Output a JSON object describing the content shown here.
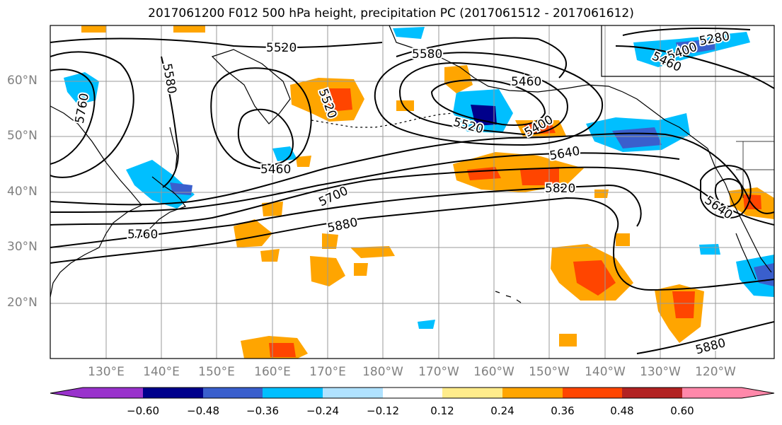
{
  "title": "2017061200 F012 500 hPa height, precipitation PC (2017061512 - 2017061612)",
  "lat_labels": [
    "60°N",
    "50°N",
    "40°N",
    "30°N",
    "20°N"
  ],
  "lon_labels": [
    "130°E",
    "140°E",
    "150°E",
    "160°E",
    "170°E",
    "180°W",
    "170°W",
    "160°W",
    "150°W",
    "140°W",
    "130°W",
    "120°W"
  ],
  "contour_labels": [
    "5520",
    "5580",
    "5580",
    "5760",
    "5520",
    "5460",
    "5700",
    "5760",
    "5880",
    "5460",
    "5400",
    "5520",
    "5640",
    "5820",
    "5280",
    "5400",
    "5460",
    "5640",
    "5880"
  ],
  "colorbar": {
    "ticks": [
      "−0.60",
      "−0.48",
      "−0.36",
      "−0.24",
      "−0.12",
      "0.12",
      "0.24",
      "0.36",
      "0.48",
      "0.60"
    ],
    "colors": [
      "#9932cc",
      "#00008b",
      "#3a5fcd",
      "#00bfff",
      "#b0e2ff",
      "#ffffff",
      "#ffec8b",
      "#ffa500",
      "#ff4500",
      "#b22222",
      "#ff88aa"
    ]
  },
  "colors": {
    "grid": "#9a9a9a",
    "contour": "#000000",
    "axis_label": "#808080"
  }
}
